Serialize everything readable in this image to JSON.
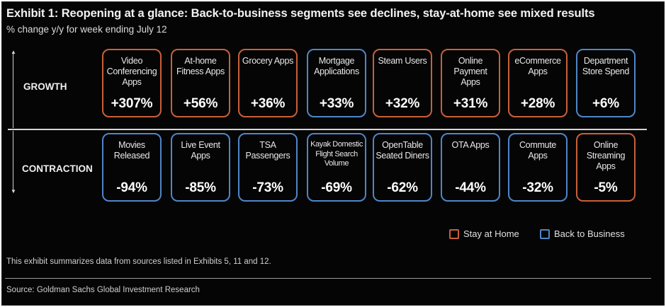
{
  "title": "Exhibit 1: Reopening at a glance: Back-to-business segments see declines, stay-at-home see mixed results",
  "subtitle": "% change y/y for week ending July 12",
  "rows": {
    "growth": "GROWTH",
    "contraction": "CONTRACTION"
  },
  "growth_tiles": [
    {
      "label": "Video Conferencing Apps",
      "value": "+307%",
      "category": "stay-at-home"
    },
    {
      "label": "At-home Fitness Apps",
      "value": "+56%",
      "category": "stay-at-home"
    },
    {
      "label": "Grocery Apps",
      "value": "+36%",
      "category": "stay-at-home"
    },
    {
      "label": "Mortgage Applications",
      "value": "+33%",
      "category": "back-to-business"
    },
    {
      "label": "Steam Users",
      "value": "+32%",
      "category": "stay-at-home"
    },
    {
      "label": "Online Payment Apps",
      "value": "+31%",
      "category": "stay-at-home"
    },
    {
      "label": "eCommerce Apps",
      "value": "+28%",
      "category": "stay-at-home"
    },
    {
      "label": "Department Store Spend",
      "value": "+6%",
      "category": "back-to-business"
    }
  ],
  "contraction_tiles": [
    {
      "label": "Movies Released",
      "value": "-94%",
      "category": "back-to-business"
    },
    {
      "label": "Live Event Apps",
      "value": "-85%",
      "category": "back-to-business"
    },
    {
      "label": "TSA Passengers",
      "value": "-73%",
      "category": "back-to-business"
    },
    {
      "label": "Kayak Domestic Flight Search Volume",
      "value": "-69%",
      "category": "back-to-business"
    },
    {
      "label": "OpenTable Seated Diners",
      "value": "-62%",
      "category": "back-to-business"
    },
    {
      "label": "OTA Apps",
      "value": "-44%",
      "category": "back-to-business"
    },
    {
      "label": "Commute Apps",
      "value": "-32%",
      "category": "back-to-business"
    },
    {
      "label": "Online Streaming Apps",
      "value": "-5%",
      "category": "stay-at-home"
    }
  ],
  "legend": {
    "stay_at_home": "Stay at Home",
    "back_to_business": "Back to Business"
  },
  "colors": {
    "stay_at_home": "#c8603a",
    "back_to_business": "#4f86c6",
    "background": "#050505"
  },
  "note": "This exhibit summarizes data from sources listed in Exhibits 5, 11 and 12.",
  "source": "Source: Goldman Sachs Global Investment Research"
}
